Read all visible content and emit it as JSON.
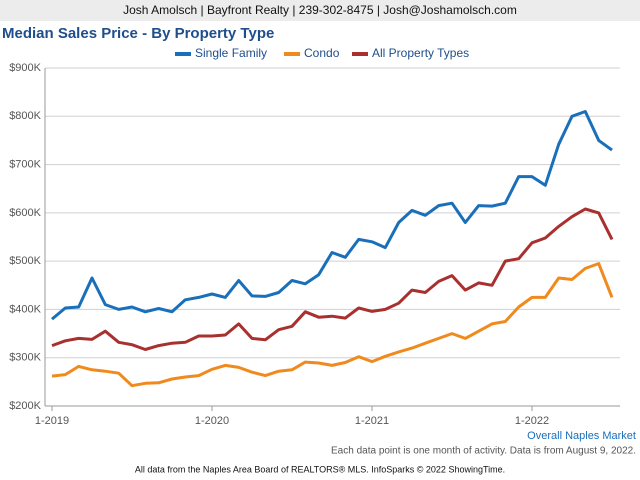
{
  "header": "Josh Amolsch | Bayfront Realty | 239-302-8475 | Josh@Joshamolsch.com",
  "chart_data": {
    "type": "line",
    "title": "Median Sales Price - By Property Type",
    "categories": [
      "1-2019",
      null,
      null,
      null,
      null,
      null,
      null,
      null,
      null,
      null,
      null,
      null,
      "1-2020",
      null,
      null,
      null,
      null,
      null,
      null,
      null,
      null,
      null,
      null,
      null,
      "1-2021",
      null,
      null,
      null,
      null,
      null,
      null,
      null,
      null,
      null,
      null,
      null,
      "1-2022",
      null,
      null,
      null,
      null,
      null,
      null
    ],
    "series": [
      {
        "name": "Single Family",
        "color": "#1a6fba",
        "values": [
          380000,
          403000,
          405000,
          465000,
          410000,
          400000,
          405000,
          395000,
          402000,
          395000,
          420000,
          425000,
          432000,
          425000,
          460000,
          428000,
          427000,
          435000,
          460000,
          453000,
          472000,
          518000,
          508000,
          545000,
          540000,
          528000,
          580000,
          605000,
          595000,
          615000,
          620000,
          580000,
          615000,
          614000,
          620000,
          675000,
          675000,
          657000,
          742000,
          800000,
          810000,
          750000,
          730000
        ]
      },
      {
        "name": "Condo",
        "color": "#f08a1c",
        "values": [
          262000,
          265000,
          282000,
          275000,
          272000,
          268000,
          242000,
          247000,
          248000,
          256000,
          260000,
          263000,
          276000,
          284000,
          280000,
          270000,
          263000,
          272000,
          275000,
          291000,
          289000,
          284000,
          290000,
          302000,
          292000,
          303000,
          312000,
          320000,
          330000,
          340000,
          350000,
          340000,
          355000,
          370000,
          375000,
          405000,
          425000,
          425000,
          465000,
          462000,
          485000,
          495000,
          425000
        ]
      },
      {
        "name": "All Property Types",
        "color": "#a8302e",
        "values": [
          325000,
          335000,
          340000,
          338000,
          355000,
          332000,
          327000,
          317000,
          325000,
          330000,
          332000,
          345000,
          345000,
          347000,
          370000,
          340000,
          337000,
          358000,
          365000,
          395000,
          384000,
          386000,
          382000,
          403000,
          396000,
          400000,
          413000,
          440000,
          435000,
          458000,
          470000,
          440000,
          455000,
          450000,
          500000,
          505000,
          538000,
          548000,
          572000,
          592000,
          608000,
          600000,
          545000
        ]
      }
    ],
    "ylim": [
      200000,
      900000
    ],
    "yticks": [
      {
        "value": 200000,
        "label": "$200K"
      },
      {
        "value": 300000,
        "label": "$300K"
      },
      {
        "value": 400000,
        "label": "$400K"
      },
      {
        "value": 500000,
        "label": "$500K"
      },
      {
        "value": 600000,
        "label": "$600K"
      },
      {
        "value": 700000,
        "label": "$700K"
      },
      {
        "value": 800000,
        "label": "$800K"
      },
      {
        "value": 900000,
        "label": "$900K"
      }
    ],
    "grid": true,
    "legend": "top",
    "market": "Overall Naples Market",
    "note": "Each data point is one month of activity. Data is from August 9, 2022.",
    "source": "All data from the Naples Area Board of REALTORS® MLS. InfoSparks © 2022 ShowingTime."
  }
}
